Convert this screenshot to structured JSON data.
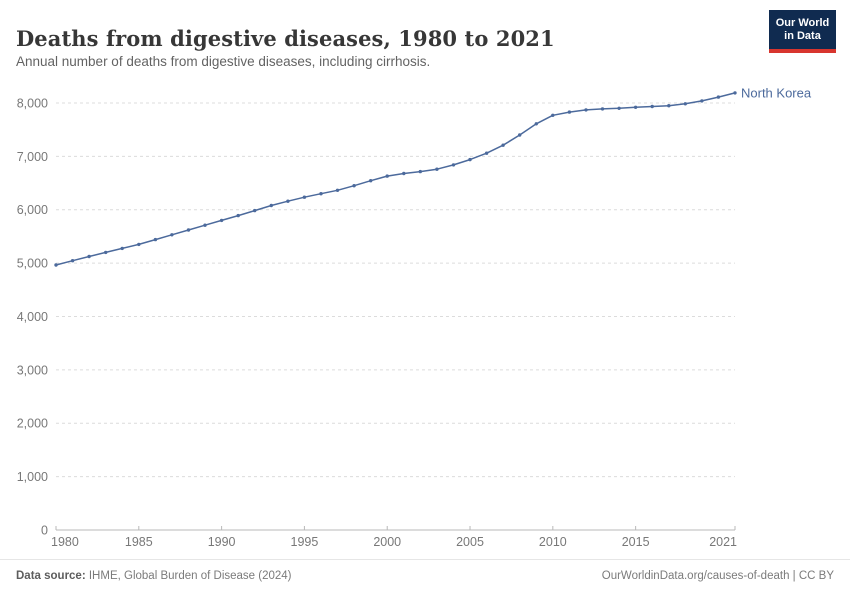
{
  "header": {
    "title": "Deaths from digestive diseases, 1980 to 2021",
    "subtitle": "Annual number of deaths from digestive diseases, including cirrhosis.",
    "logo": {
      "line1": "Our World",
      "line2": "in Data"
    }
  },
  "footer": {
    "source_label": "Data source:",
    "source_text": " IHME, Global Burden of Disease (2024)",
    "link_text": "OurWorldinData.org/causes-of-death | CC BY"
  },
  "colors": {
    "series_blue": "#4c6a9c",
    "gridline": "#dcdcdc",
    "axis_line": "#b8b8b8",
    "tick_label": "#787878",
    "logo_bg": "#102b50",
    "logo_bar": "#d8352e"
  },
  "chart_data": {
    "type": "line",
    "title": "Deaths from digestive diseases, 1980 to 2021",
    "subtitle": "Annual number of deaths from digestive diseases, including cirrhosis.",
    "xlabel": "",
    "ylabel": "",
    "xlim": [
      1980,
      2021
    ],
    "ylim": [
      0,
      8400
    ],
    "grid": "horizontal-dashed",
    "legend_position": "end-of-line-label",
    "x_ticks": [
      1980,
      1985,
      1990,
      1995,
      2000,
      2005,
      2010,
      2015,
      2021
    ],
    "y_ticks": [
      {
        "value": 0,
        "label": "0"
      },
      {
        "value": 1000,
        "label": "1,000"
      },
      {
        "value": 2000,
        "label": "2,000"
      },
      {
        "value": 3000,
        "label": "3,000"
      },
      {
        "value": 4000,
        "label": "4,000"
      },
      {
        "value": 5000,
        "label": "5,000"
      },
      {
        "value": 6000,
        "label": "6,000"
      },
      {
        "value": 7000,
        "label": "7,000"
      },
      {
        "value": 8000,
        "label": "8,000"
      }
    ],
    "series": [
      {
        "name": "North Korea",
        "color": "#4c6a9c",
        "x": [
          1980,
          1981,
          1982,
          1983,
          1984,
          1985,
          1986,
          1987,
          1988,
          1989,
          1990,
          1991,
          1992,
          1993,
          1994,
          1995,
          1996,
          1997,
          1998,
          1999,
          2000,
          2001,
          2002,
          2003,
          2004,
          2005,
          2006,
          2007,
          2008,
          2009,
          2010,
          2011,
          2012,
          2013,
          2014,
          2015,
          2016,
          2017,
          2018,
          2019,
          2020,
          2021
        ],
        "values": [
          4965,
          5045,
          5125,
          5200,
          5275,
          5350,
          5440,
          5530,
          5620,
          5710,
          5800,
          5890,
          5985,
          6080,
          6160,
          6235,
          6300,
          6365,
          6450,
          6545,
          6630,
          6680,
          6715,
          6760,
          6840,
          6940,
          7060,
          7210,
          7400,
          7610,
          7770,
          7830,
          7870,
          7890,
          7900,
          7920,
          7935,
          7950,
          7985,
          8040,
          8110,
          8190
        ]
      }
    ]
  }
}
